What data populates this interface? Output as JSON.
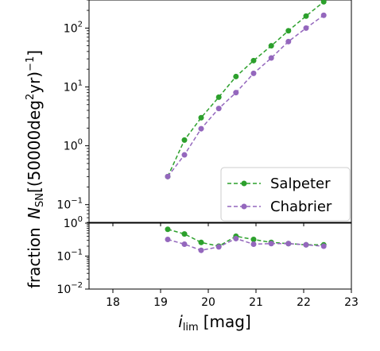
{
  "chart_data": [
    {
      "type": "line",
      "panel": "top",
      "yscale": "log",
      "ylim": [
        0.05,
        300
      ],
      "xlim": [
        17.5,
        23
      ],
      "yticks": [
        {
          "value": 0.1,
          "base": "10",
          "exp": "−1"
        },
        {
          "value": 1,
          "base": "10",
          "exp": "0"
        },
        {
          "value": 10,
          "base": "10",
          "exp": "1"
        },
        {
          "value": 100,
          "base": "10",
          "exp": "2"
        }
      ],
      "ylabel_parts": [
        "N",
        "SN",
        "[(50000deg",
        "2",
        "yr)",
        "−1",
        "]"
      ],
      "legend_position": "lower right",
      "x": [
        19.15,
        19.5,
        19.85,
        20.22,
        20.58,
        20.95,
        21.32,
        21.68,
        22.05,
        22.42
      ],
      "series": [
        {
          "name": "Salpeter",
          "color": "#2ca02c",
          "values": [
            0.3,
            1.25,
            3.0,
            6.7,
            15,
            28,
            50,
            90,
            160,
            280
          ]
        },
        {
          "name": "Chabrier",
          "color": "#9467bd",
          "values": [
            0.3,
            0.7,
            1.95,
            4.3,
            8.0,
            17,
            31,
            59,
            100,
            165
          ]
        }
      ]
    },
    {
      "type": "line",
      "panel": "bottom",
      "yscale": "log",
      "ylim": [
        0.01,
        1
      ],
      "xlim": [
        17.5,
        23
      ],
      "yticks": [
        {
          "value": 0.01,
          "base": "10",
          "exp": "−2"
        },
        {
          "value": 0.1,
          "base": "10",
          "exp": "−1"
        },
        {
          "value": 1,
          "base": "10",
          "exp": "0"
        }
      ],
      "xticks": [
        18,
        19,
        20,
        21,
        22,
        23
      ],
      "ylabel": "fraction",
      "xlabel_parts": [
        "i",
        "lim",
        "[mag]"
      ],
      "x": [
        19.15,
        19.5,
        19.85,
        20.22,
        20.58,
        20.95,
        21.32,
        21.68,
        22.05,
        22.42
      ],
      "series": [
        {
          "name": "Salpeter",
          "color": "#2ca02c",
          "values": [
            0.65,
            0.47,
            0.26,
            0.2,
            0.4,
            0.32,
            0.26,
            0.24,
            0.22,
            0.22
          ]
        },
        {
          "name": "Chabrier",
          "color": "#9467bd",
          "values": [
            0.32,
            0.23,
            0.15,
            0.19,
            0.34,
            0.23,
            0.24,
            0.24,
            0.22,
            0.2
          ]
        }
      ]
    }
  ]
}
